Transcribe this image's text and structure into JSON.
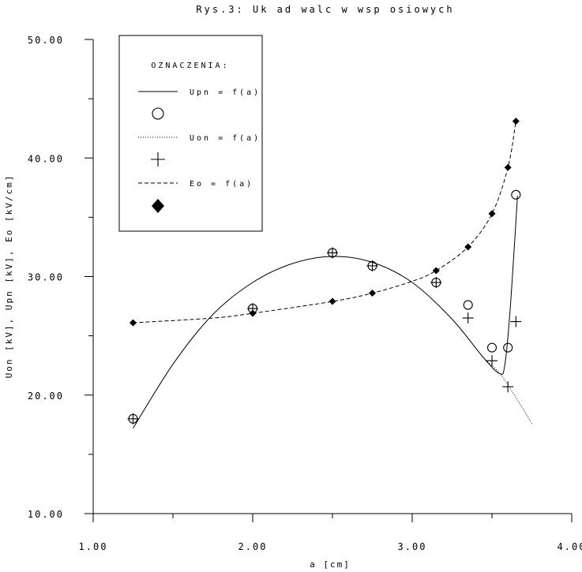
{
  "chart_data": {
    "type": "scatter",
    "title": "Rys.3: Uk ad walc w wsp  osiowych",
    "xlabel": "a [cm]",
    "ylabel": "Uon [kV], Upn [kV], Eo [kV/cm]",
    "xlim": [
      1.0,
      4.0
    ],
    "ylim": [
      10.0,
      50.0
    ],
    "x_ticks": [
      "1.00",
      "2.00",
      "3.00",
      "4.00"
    ],
    "y_ticks": [
      "10.00",
      "20.00",
      "30.00",
      "40.00",
      "50.00"
    ],
    "x_minor_step": 0.5,
    "y_minor_step": 5,
    "grid": false,
    "legend": {
      "title": "OZNACZENIA:",
      "placement": "top-left",
      "entries": [
        "Upn = f(a)",
        "Uon = f(a)",
        "Eo = f(a)"
      ]
    },
    "series": [
      {
        "name": "Upn = f(a)",
        "marker": "circle",
        "line": "solid",
        "points": [
          [
            1.25,
            18.0
          ],
          [
            2.0,
            27.3
          ],
          [
            2.5,
            32.0
          ],
          [
            2.75,
            30.9
          ],
          [
            3.15,
            29.5
          ],
          [
            3.35,
            27.6
          ],
          [
            3.5,
            24.0
          ],
          [
            3.6,
            24.0
          ],
          [
            3.65,
            36.9
          ]
        ],
        "curve": [
          [
            1.25,
            17.2
          ],
          [
            1.5,
            22.6
          ],
          [
            1.75,
            26.8
          ],
          [
            2.0,
            29.5
          ],
          [
            2.25,
            31.1
          ],
          [
            2.5,
            31.7
          ],
          [
            2.75,
            31.2
          ],
          [
            3.0,
            29.5
          ],
          [
            3.25,
            26.4
          ],
          [
            3.45,
            23.1
          ],
          [
            3.55,
            21.8
          ],
          [
            3.58,
            22.5
          ],
          [
            3.61,
            26.5
          ],
          [
            3.64,
            32.5
          ],
          [
            3.66,
            36.8
          ]
        ]
      },
      {
        "name": "Uon = f(a)",
        "marker": "plus",
        "line": "dotted",
        "points": [
          [
            1.25,
            18.0
          ],
          [
            2.0,
            27.3
          ],
          [
            2.5,
            32.0
          ],
          [
            2.75,
            30.9
          ],
          [
            3.15,
            29.5
          ],
          [
            3.35,
            26.5
          ],
          [
            3.5,
            22.9
          ],
          [
            3.6,
            20.7
          ],
          [
            3.65,
            26.2
          ]
        ],
        "curve": [
          [
            3.45,
            23.1
          ],
          [
            3.55,
            21.8
          ],
          [
            3.65,
            19.8
          ],
          [
            3.75,
            17.6
          ]
        ]
      },
      {
        "name": "Eo = f(a)",
        "marker": "diamond",
        "line": "dashed",
        "points": [
          [
            1.25,
            26.1
          ],
          [
            2.0,
            26.9
          ],
          [
            2.5,
            27.9
          ],
          [
            2.75,
            28.6
          ],
          [
            3.15,
            30.5
          ],
          [
            3.35,
            32.5
          ],
          [
            3.5,
            35.3
          ],
          [
            3.6,
            39.2
          ],
          [
            3.65,
            43.1
          ]
        ],
        "curve": [
          [
            1.25,
            26.1
          ],
          [
            1.75,
            26.5
          ],
          [
            2.0,
            26.9
          ],
          [
            2.5,
            27.9
          ],
          [
            2.75,
            28.6
          ],
          [
            3.0,
            29.6
          ],
          [
            3.15,
            30.5
          ],
          [
            3.35,
            32.5
          ],
          [
            3.5,
            35.3
          ],
          [
            3.6,
            39.2
          ],
          [
            3.65,
            43.1
          ]
        ]
      }
    ]
  }
}
